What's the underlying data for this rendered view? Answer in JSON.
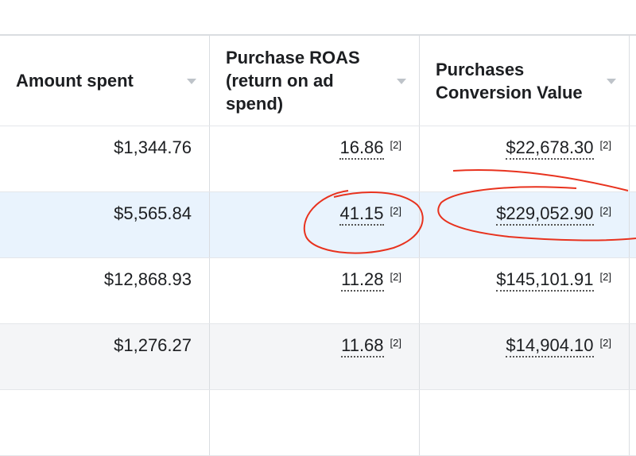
{
  "columns": [
    {
      "label": "Amount spent"
    },
    {
      "label": "Purchase ROAS (return on ad spend)"
    },
    {
      "label": "Purchases Conversion Value"
    }
  ],
  "footnote": "[2]",
  "rows": [
    {
      "amount": "$1,344.76",
      "roas": "16.86",
      "value": "$22,678.30",
      "state": "normal"
    },
    {
      "amount": "$5,565.84",
      "roas": "41.15",
      "value": "$229,052.90",
      "state": "highlighted"
    },
    {
      "amount": "$12,868.93",
      "roas": "11.28",
      "value": "$145,101.91",
      "state": "normal"
    },
    {
      "amount": "$1,276.27",
      "roas": "11.68",
      "value": "$14,904.10",
      "state": "hover"
    }
  ],
  "colors": {
    "annotation": "#e8321e",
    "highlight": "#e9f3fd"
  }
}
